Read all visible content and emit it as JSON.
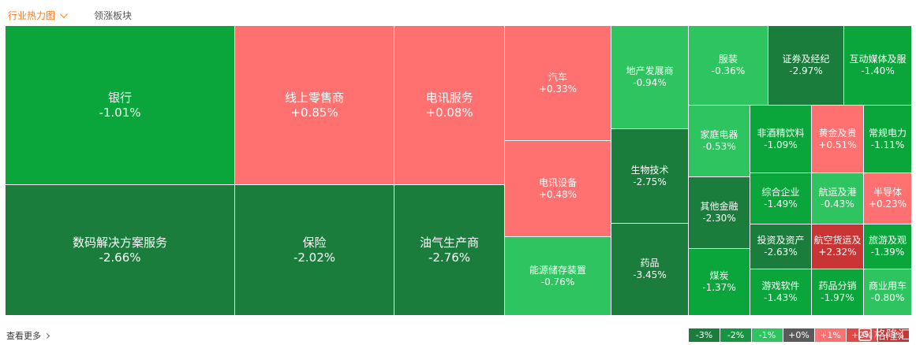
{
  "tabs": {
    "active_label": "行业热力图",
    "second_label": "领涨板块"
  },
  "cells": [
    {
      "name": "银行",
      "change": "-1.01%",
      "color": "#0aa53b"
    },
    {
      "name": "线上零售商",
      "change": "+0.85%",
      "color": "#ff7170"
    },
    {
      "name": "电讯服务",
      "change": "+0.08%",
      "color": "#ff7170"
    },
    {
      "name": "汽车",
      "change": "+0.33%",
      "color": "#ff7170"
    },
    {
      "name": "电讯设备",
      "change": "+0.48%",
      "color": "#ff7170"
    },
    {
      "name": "地产发展商",
      "change": "-0.94%",
      "color": "#2ec45f"
    },
    {
      "name": "服装",
      "change": "-0.36%",
      "color": "#2ec45f"
    },
    {
      "name": "证券及经纪",
      "change": "-2.97%",
      "color": "#1b7d3c"
    },
    {
      "name": "互动媒体及服",
      "change": "-1.40%",
      "color": "#0aa53b"
    },
    {
      "name": "家庭电器",
      "change": "-0.53%",
      "color": "#2ec45f"
    },
    {
      "name": "非酒精饮料",
      "change": "-1.09%",
      "color": "#0aa53b"
    },
    {
      "name": "黄金及贵",
      "change": "+0.51%",
      "color": "#ff7170"
    },
    {
      "name": "常规电力",
      "change": "-1.11%",
      "color": "#0aa53b"
    },
    {
      "name": "生物技术",
      "change": "-2.75%",
      "color": "#1b7d3c"
    },
    {
      "name": "数码解决方案服务",
      "change": "-2.66%",
      "color": "#1b7d3c"
    },
    {
      "name": "保险",
      "change": "-2.02%",
      "color": "#1b7d3c"
    },
    {
      "name": "油气生产商",
      "change": "-2.76%",
      "color": "#1b7d3c"
    },
    {
      "name": "能源储存装置",
      "change": "-0.76%",
      "color": "#2ec45f"
    },
    {
      "name": "其他金融",
      "change": "-2.30%",
      "color": "#1b7d3c"
    },
    {
      "name": "综合企业",
      "change": "-1.49%",
      "color": "#0aa53b"
    },
    {
      "name": "航运及港",
      "change": "-0.43%",
      "color": "#2ec45f"
    },
    {
      "name": "半导体",
      "change": "+0.23%",
      "color": "#ff7170"
    },
    {
      "name": "投资及资产",
      "change": "-2.63%",
      "color": "#1b7d3c"
    },
    {
      "name": "航空货运及",
      "change": "+2.32%",
      "color": "#c93434"
    },
    {
      "name": "旅游及观",
      "change": "-1.39%",
      "color": "#0aa53b"
    },
    {
      "name": "药品",
      "change": "-3.45%",
      "color": "#1b7d3c"
    },
    {
      "name": "煤炭",
      "change": "-1.37%",
      "color": "#0aa53b"
    },
    {
      "name": "游戏软件",
      "change": "-1.43%",
      "color": "#0aa53b"
    },
    {
      "name": "药品分销",
      "change": "-1.97%",
      "color": "#0aa53b"
    },
    {
      "name": "商业用车",
      "change": "-0.80%",
      "color": "#2ec45f"
    }
  ],
  "footer": {
    "more_label": "查看更多"
  },
  "legend": [
    {
      "label": "-3%",
      "color": "#1b7d3c"
    },
    {
      "label": "-2%",
      "color": "#159540"
    },
    {
      "label": "-1%",
      "color": "#2ec45f"
    },
    {
      "label": "+0%",
      "color": "#5a5a5a"
    },
    {
      "label": "+1%",
      "color": "#ff7170"
    },
    {
      "label": "+2%",
      "color": "#e04848"
    },
    {
      "label": "+3%",
      "color": "#c93434"
    }
  ],
  "watermark": {
    "text": "格隆汇",
    "glyph": "G"
  }
}
